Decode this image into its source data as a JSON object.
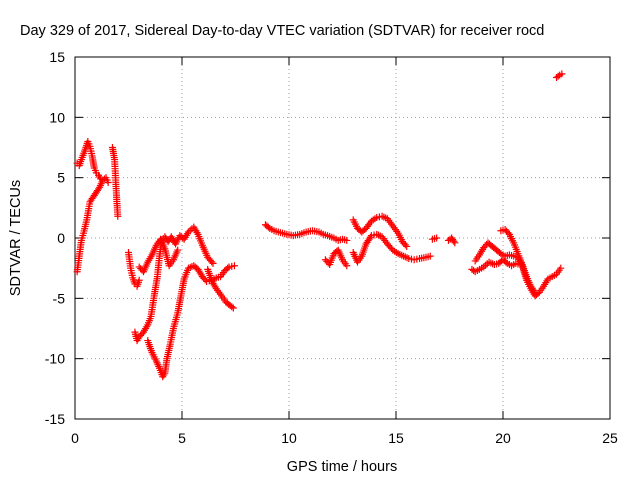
{
  "chart_data": {
    "type": "scatter",
    "title": "Day 329 of 2017, Sidereal Day-to-day VTEC variation (SDTVAR) for receiver rocd",
    "xlabel": "GPS time / hours",
    "ylabel": "SDTVAR / TECUs",
    "xlim": [
      0,
      25
    ],
    "ylim": [
      -15,
      15
    ],
    "xticks": [
      0,
      5,
      10,
      15,
      20,
      25
    ],
    "yticks": [
      -15,
      -10,
      -5,
      0,
      5,
      10,
      15
    ],
    "grid": true,
    "marker": "+",
    "color": "#ff0000",
    "series": [
      {
        "name": "SDTVAR",
        "tracks": [
          [
            [
              0.1,
              6.2
            ],
            [
              0.2,
              6.0
            ],
            [
              0.3,
              6.5
            ],
            [
              0.45,
              7.2
            ],
            [
              0.6,
              8.0
            ],
            [
              0.7,
              7.6
            ],
            [
              0.8,
              6.8
            ],
            [
              0.9,
              5.8
            ],
            [
              1.0,
              5.4
            ],
            [
              1.1,
              5.2
            ],
            [
              1.2,
              4.9
            ]
          ],
          [
            [
              0.1,
              -2.8
            ],
            [
              0.2,
              -1.5
            ],
            [
              0.3,
              -0.2
            ],
            [
              0.4,
              0.4
            ],
            [
              0.55,
              1.5
            ],
            [
              0.7,
              3.0
            ],
            [
              0.85,
              3.4
            ],
            [
              1.0,
              3.8
            ],
            [
              1.15,
              4.2
            ],
            [
              1.3,
              4.8
            ],
            [
              1.45,
              5.0
            ],
            [
              1.55,
              4.6
            ]
          ],
          [
            [
              1.75,
              7.5
            ],
            [
              1.85,
              6.5
            ],
            [
              1.9,
              4.8
            ],
            [
              1.95,
              3.2
            ],
            [
              2.0,
              1.8
            ]
          ],
          [
            [
              2.5,
              -1.2
            ],
            [
              2.6,
              -2.5
            ],
            [
              2.7,
              -3.3
            ],
            [
              2.8,
              -3.8
            ],
            [
              2.9,
              -4.0
            ],
            [
              3.0,
              -3.5
            ]
          ],
          [
            [
              2.8,
              -7.8
            ],
            [
              2.9,
              -8.5
            ],
            [
              3.0,
              -8.2
            ],
            [
              3.2,
              -7.8
            ],
            [
              3.4,
              -7.2
            ],
            [
              3.55,
              -6.5
            ],
            [
              3.7,
              -4.8
            ],
            [
              3.85,
              -3.2
            ],
            [
              3.95,
              -1.5
            ],
            [
              4.05,
              -0.2
            ],
            [
              4.2,
              0.1
            ],
            [
              4.35,
              -0.3
            ],
            [
              4.5,
              0.1
            ],
            [
              4.7,
              -0.5
            ],
            [
              4.9,
              0.2
            ],
            [
              5.1,
              -0.1
            ],
            [
              5.3,
              0.5
            ],
            [
              5.55,
              0.9
            ],
            [
              5.75,
              0.3
            ],
            [
              5.95,
              -0.6
            ],
            [
              6.2,
              -1.6
            ],
            [
              6.45,
              -2.1
            ]
          ],
          [
            [
              3.4,
              -8.5
            ],
            [
              3.6,
              -9.5
            ],
            [
              3.8,
              -10.2
            ],
            [
              3.95,
              -10.8
            ],
            [
              4.1,
              -11.5
            ],
            [
              4.2,
              -11.2
            ],
            [
              4.3,
              -10.0
            ],
            [
              4.45,
              -8.8
            ],
            [
              4.6,
              -7.5
            ],
            [
              4.8,
              -6.2
            ],
            [
              4.95,
              -4.8
            ],
            [
              5.1,
              -3.4
            ],
            [
              5.3,
              -2.5
            ],
            [
              5.55,
              -2.3
            ],
            [
              5.75,
              -2.6
            ],
            [
              5.95,
              -3.2
            ],
            [
              6.15,
              -3.6
            ],
            [
              6.4,
              -3.5
            ],
            [
              6.6,
              -3.3
            ],
            [
              6.8,
              -3.2
            ],
            [
              7.0,
              -2.7
            ],
            [
              7.2,
              -2.4
            ],
            [
              7.45,
              -2.3
            ]
          ],
          [
            [
              6.2,
              -2.6
            ],
            [
              6.4,
              -3.6
            ],
            [
              6.6,
              -4.2
            ],
            [
              6.85,
              -4.8
            ],
            [
              7.05,
              -5.3
            ],
            [
              7.25,
              -5.6
            ],
            [
              7.4,
              -5.8
            ]
          ],
          [
            [
              3.0,
              -2.4
            ],
            [
              3.2,
              -2.8
            ],
            [
              3.4,
              -2.0
            ],
            [
              3.6,
              -1.4
            ],
            [
              3.8,
              -0.6
            ],
            [
              4.0,
              -0.1
            ],
            [
              4.2,
              -0.9
            ],
            [
              4.4,
              -2.3
            ],
            [
              4.6,
              -1.8
            ],
            [
              4.8,
              -1.0
            ]
          ],
          [
            [
              8.9,
              1.1
            ],
            [
              9.1,
              0.8
            ],
            [
              9.3,
              0.6
            ],
            [
              9.5,
              0.5
            ],
            [
              9.7,
              0.4
            ],
            [
              9.9,
              0.3
            ],
            [
              10.2,
              0.2
            ],
            [
              10.5,
              0.3
            ],
            [
              10.8,
              0.5
            ],
            [
              11.1,
              0.6
            ],
            [
              11.4,
              0.5
            ],
            [
              11.6,
              0.3
            ],
            [
              11.8,
              0.2
            ],
            [
              12.1,
              0.0
            ],
            [
              12.3,
              -0.2
            ],
            [
              12.5,
              -0.1
            ],
            [
              12.7,
              -0.2
            ]
          ],
          [
            [
              11.7,
              -1.8
            ],
            [
              11.9,
              -2.2
            ],
            [
              12.1,
              -1.3
            ],
            [
              12.3,
              -1.0
            ],
            [
              12.5,
              -1.8
            ],
            [
              12.7,
              -2.3
            ]
          ],
          [
            [
              13.0,
              -1.2
            ],
            [
              13.2,
              -2.0
            ],
            [
              13.4,
              -1.5
            ],
            [
              13.6,
              -0.5
            ],
            [
              13.85,
              0.2
            ],
            [
              14.1,
              0.3
            ],
            [
              14.35,
              0.1
            ],
            [
              14.6,
              -0.5
            ],
            [
              14.85,
              -1.0
            ],
            [
              15.1,
              -1.3
            ],
            [
              15.35,
              -1.5
            ],
            [
              15.6,
              -1.7
            ],
            [
              15.85,
              -1.8
            ],
            [
              16.1,
              -1.7
            ],
            [
              16.4,
              -1.6
            ],
            [
              16.6,
              -1.5
            ]
          ],
          [
            [
              13.0,
              1.5
            ],
            [
              13.2,
              0.8
            ],
            [
              13.4,
              0.5
            ],
            [
              13.6,
              0.8
            ],
            [
              13.85,
              1.4
            ],
            [
              14.1,
              1.7
            ],
            [
              14.35,
              1.8
            ],
            [
              14.6,
              1.6
            ],
            [
              14.85,
              1.0
            ],
            [
              15.1,
              0.4
            ],
            [
              15.3,
              -0.3
            ],
            [
              15.5,
              -0.7
            ]
          ],
          [
            [
              16.7,
              -0.1
            ],
            [
              16.9,
              0.0
            ]
          ],
          [
            [
              17.45,
              -0.2
            ],
            [
              17.6,
              0.0
            ],
            [
              17.75,
              -0.4
            ]
          ],
          [
            [
              18.55,
              -2.6
            ],
            [
              18.7,
              -2.8
            ],
            [
              18.9,
              -2.6
            ],
            [
              19.1,
              -2.4
            ],
            [
              19.35,
              -2.0
            ],
            [
              19.6,
              -2.2
            ],
            [
              19.8,
              -2.1
            ],
            [
              20.0,
              -1.8
            ],
            [
              20.2,
              -2.1
            ],
            [
              20.4,
              -2.3
            ],
            [
              20.6,
              -2.1
            ],
            [
              20.8,
              -2.2
            ]
          ],
          [
            [
              18.7,
              -1.9
            ],
            [
              18.9,
              -1.4
            ],
            [
              19.1,
              -0.8
            ],
            [
              19.3,
              -0.4
            ],
            [
              19.5,
              -0.7
            ],
            [
              19.7,
              -1.0
            ],
            [
              19.9,
              -1.3
            ],
            [
              20.1,
              -1.5
            ],
            [
              20.3,
              -1.4
            ],
            [
              20.5,
              -1.5
            ],
            [
              20.7,
              -1.6
            ],
            [
              20.9,
              -2.3
            ],
            [
              21.1,
              -3.5
            ],
            [
              21.3,
              -4.2
            ],
            [
              21.5,
              -4.8
            ],
            [
              21.7,
              -4.5
            ],
            [
              21.9,
              -4.0
            ],
            [
              22.1,
              -3.4
            ],
            [
              22.3,
              -3.2
            ],
            [
              22.5,
              -3.0
            ],
            [
              22.7,
              -2.5
            ]
          ],
          [
            [
              19.9,
              0.6
            ],
            [
              20.1,
              0.7
            ],
            [
              20.3,
              0.3
            ],
            [
              20.5,
              -0.4
            ],
            [
              20.7,
              -1.3
            ],
            [
              20.9,
              -2.2
            ],
            [
              21.1,
              -3.2
            ],
            [
              21.3,
              -4.0
            ],
            [
              21.5,
              -4.5
            ]
          ],
          [
            [
              22.5,
              13.3
            ],
            [
              22.65,
              13.5
            ],
            [
              22.75,
              13.6
            ]
          ]
        ]
      }
    ]
  }
}
